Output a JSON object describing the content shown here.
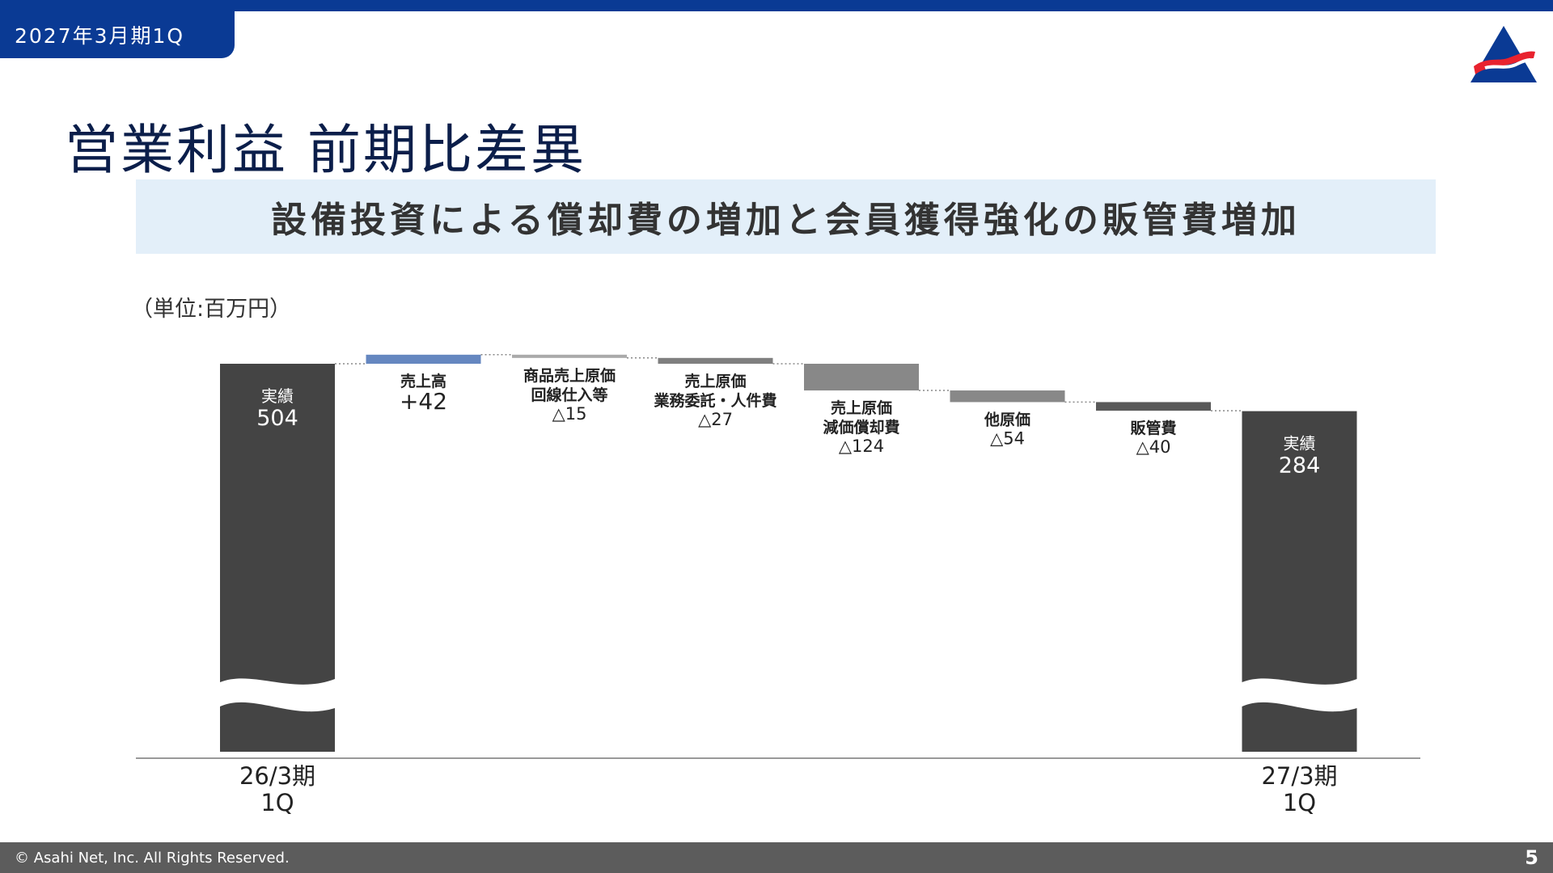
{
  "header": {
    "period": "2027年3月期1Q",
    "title": "営業利益 前期比差異"
  },
  "banner": {
    "text": "設備投資による償却費の増加と会員獲得強化の販管費増加"
  },
  "chart_unit": "（単位:百万円）",
  "footer": {
    "copyright": "© Asahi Net, Inc. All Rights Reserved.",
    "page": "5"
  },
  "colors": {
    "brand": "#0a3a94",
    "total": "#444444",
    "increase": "#6587c0",
    "step_light": "#aaaaaa",
    "step_mid": "#7f7f7f",
    "step_gray": "#888888",
    "step_dark": "#595959"
  },
  "chart_data": {
    "type": "waterfall",
    "title": "営業利益 前期比差異",
    "unit": "百万円",
    "axis_break": true,
    "steps": [
      {
        "kind": "total",
        "label": "実績",
        "value": 504,
        "display": "504",
        "category": [
          "26/3期",
          "1Q"
        ],
        "color": "#444444"
      },
      {
        "kind": "delta",
        "label": [
          "売上高"
        ],
        "value": 42,
        "display": "+42",
        "color": "#6587c0"
      },
      {
        "kind": "delta",
        "label": [
          "商品売上原価",
          "回線仕入等"
        ],
        "value": -15,
        "display": "△15",
        "color": "#aaaaaa"
      },
      {
        "kind": "delta",
        "label": [
          "売上原価",
          "業務委託・人件費"
        ],
        "value": -27,
        "display": "△27",
        "color": "#7f7f7f"
      },
      {
        "kind": "delta",
        "label": [
          "売上原価",
          "減価償却費"
        ],
        "value": -124,
        "display": "△124",
        "color": "#888888"
      },
      {
        "kind": "delta",
        "label": [
          "他原価"
        ],
        "value": -54,
        "display": "△54",
        "color": "#888888"
      },
      {
        "kind": "delta",
        "label": [
          "販管費"
        ],
        "value": -40,
        "display": "△40",
        "color": "#595959"
      },
      {
        "kind": "total",
        "label": "実績",
        "value": 284,
        "display": "284",
        "category": [
          "27/3期",
          "1Q"
        ],
        "color": "#444444"
      }
    ]
  }
}
